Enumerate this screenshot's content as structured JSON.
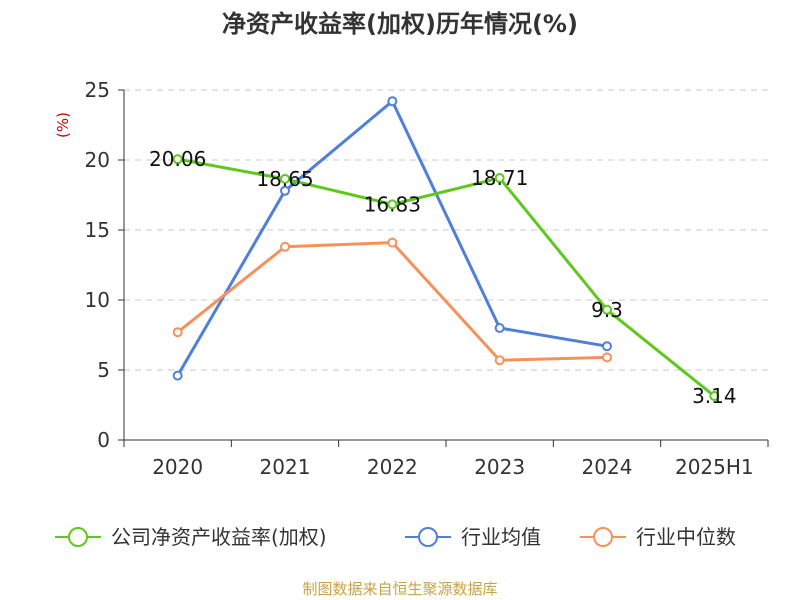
{
  "chart_data": {
    "type": "line",
    "title": "净资产收益率(加权)历年情况(%)",
    "ylabel": "(%)",
    "categories": [
      "2020",
      "2021",
      "2022",
      "2023",
      "2024",
      "2025H1"
    ],
    "ylim": [
      0,
      25
    ],
    "yticks": [
      0,
      5,
      10,
      15,
      20,
      25
    ],
    "grid": true,
    "legend_position": "bottom",
    "series": [
      {
        "name": "公司净资产收益率(加权)",
        "color": "#5fc81f",
        "values": [
          20.06,
          18.65,
          16.83,
          18.71,
          9.3,
          3.14
        ],
        "labels": [
          "20.06",
          "18.65",
          "16.83",
          "18.71",
          "9.3",
          "3.14"
        ]
      },
      {
        "name": "行业均值",
        "color": "#4f7fdb",
        "values": [
          4.6,
          17.8,
          24.2,
          8.0,
          6.7,
          null
        ]
      },
      {
        "name": "行业中位数",
        "color": "#f5915c",
        "values": [
          7.7,
          13.8,
          14.1,
          5.7,
          5.9,
          null
        ]
      }
    ]
  },
  "footer": {
    "source": "制图数据来自恒生聚源数据库"
  }
}
